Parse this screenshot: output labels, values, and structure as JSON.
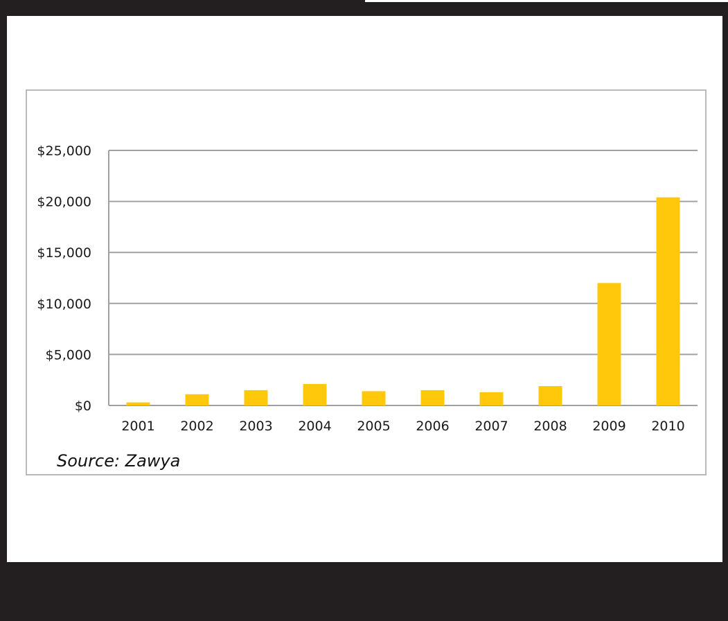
{
  "colors": {
    "page_background": "#231f20",
    "sheet": "#ffffff",
    "frame_border": "#b9b9b9",
    "gridline": "#a0a0a0",
    "bar": "#ffc80a"
  },
  "source": "Source: Zawya",
  "chart_data": {
    "type": "bar",
    "categories": [
      "2001",
      "2002",
      "2003",
      "2004",
      "2005",
      "2006",
      "2007",
      "2008",
      "2009",
      "2010"
    ],
    "values": [
      300,
      1100,
      1500,
      2100,
      1400,
      1500,
      1300,
      1900,
      12000,
      20400
    ],
    "yticks": [
      0,
      5000,
      10000,
      15000,
      20000,
      25000
    ],
    "ytick_labels": [
      "$0",
      "$5,000",
      "$10,000",
      "$15,000",
      "$20,000",
      "$25,000"
    ],
    "ylim": [
      0,
      25000
    ],
    "title": "",
    "xlabel": "",
    "ylabel": "",
    "grid": true,
    "legend": "none"
  }
}
